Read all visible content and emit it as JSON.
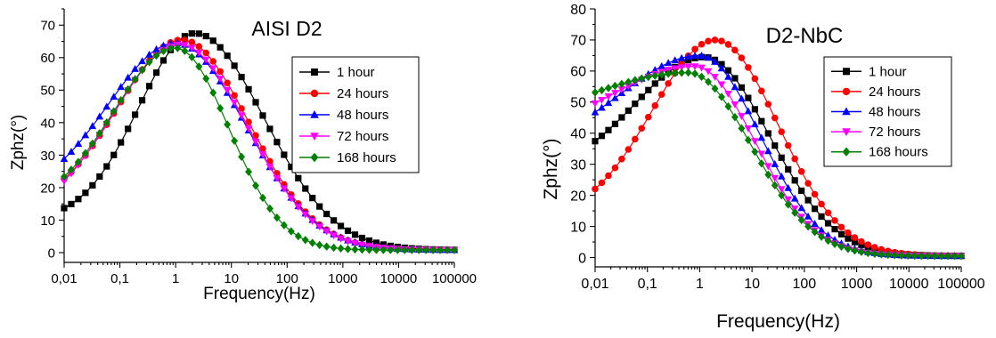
{
  "chart_data": [
    {
      "type": "scatter",
      "title": "AISI D2",
      "xlabel": "Frequency(Hz)",
      "ylabel": "Zphz(°)",
      "xscale": "log",
      "xlim": [
        0.01,
        100000
      ],
      "ylim": [
        -3,
        75
      ],
      "xtick_labels": [
        "0,01",
        "0,1",
        "1",
        "10",
        "100",
        "1000",
        "10000",
        "100000"
      ],
      "ytick_labels": [
        "0",
        "10",
        "20",
        "30",
        "40",
        "50",
        "60",
        "70"
      ],
      "legend_position": "top-right",
      "series": [
        {
          "name": "1 hour",
          "color": "#000000",
          "marker": "square",
          "peak_freq": 2.2,
          "peak": 67.5,
          "low_end": 10.0,
          "high_end": 0.8,
          "width_low": 1.0,
          "width_high": 1.25
        },
        {
          "name": "24 hours",
          "color": "#ff0000",
          "marker": "circle",
          "peak_freq": 1.3,
          "peak": 65.5,
          "low_end": 13.0,
          "high_end": 0.8,
          "width_low": 1.15,
          "width_high": 1.2
        },
        {
          "name": "48 hours",
          "color": "#0000ff",
          "marker": "triangle-up",
          "peak_freq": 1.0,
          "peak": 64.5,
          "low_end": 17.0,
          "high_end": 0.8,
          "width_low": 1.2,
          "width_high": 1.25
        },
        {
          "name": "72 hours",
          "color": "#ff00ff",
          "marker": "triangle-down",
          "peak_freq": 1.2,
          "peak": 64.0,
          "low_end": 10.0,
          "high_end": 0.8,
          "width_low": 1.2,
          "width_high": 1.2
        },
        {
          "name": "168 hours",
          "color": "#008000",
          "marker": "diamond",
          "peak_freq": 1.0,
          "peak": 63.0,
          "low_end": 14.0,
          "high_end": 0.8,
          "width_low": 1.1,
          "width_high": 0.95
        }
      ]
    },
    {
      "type": "scatter",
      "title": "D2-NbC",
      "xlabel": "Frequency(Hz)",
      "ylabel": "Zphz(°)",
      "xscale": "log",
      "xlim": [
        0.01,
        100000
      ],
      "ylim": [
        -3,
        80
      ],
      "xtick_labels": [
        "0,01",
        "0,1",
        "1",
        "10",
        "100",
        "1000",
        "10000",
        "100000"
      ],
      "ytick_labels": [
        "0",
        "10",
        "20",
        "30",
        "40",
        "50",
        "60",
        "70",
        "80"
      ],
      "legend_position": "top-right",
      "series": [
        {
          "name": "1 hour",
          "color": "#000000",
          "marker": "square",
          "peak_freq": 1.2,
          "peak": 64.5,
          "low_end": 27.0,
          "high_end": 0.5,
          "width_low": 1.3,
          "width_high": 1.25
        },
        {
          "name": "24 hours",
          "color": "#ff0000",
          "marker": "circle",
          "peak_freq": 2.0,
          "peak": 70.0,
          "low_end": 13.0,
          "high_end": 0.5,
          "width_low": 1.2,
          "width_high": 1.2
        },
        {
          "name": "48 hours",
          "color": "#0000ff",
          "marker": "triangle-up",
          "peak_freq": 1.0,
          "peak": 65.0,
          "low_end": 34.0,
          "high_end": 0.5,
          "width_low": 1.5,
          "width_high": 1.15
        },
        {
          "name": "72 hours",
          "color": "#ff00ff",
          "marker": "triangle-down",
          "peak_freq": 0.8,
          "peak": 61.5,
          "low_end": 38.0,
          "high_end": 0.5,
          "width_low": 1.6,
          "width_high": 1.15
        },
        {
          "name": "168 hours",
          "color": "#008000",
          "marker": "diamond",
          "peak_freq": 0.6,
          "peak": 59.5,
          "low_end": 43.0,
          "high_end": 0.5,
          "width_low": 1.8,
          "width_high": 1.2
        }
      ]
    }
  ]
}
